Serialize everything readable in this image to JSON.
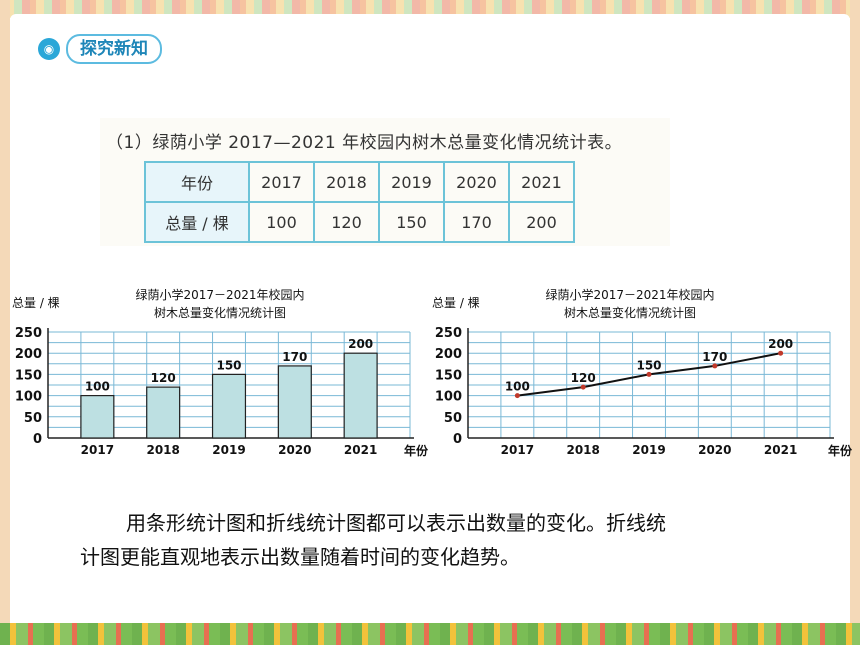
{
  "header": {
    "tag_label": "探究新知",
    "tag_icon": "tooth-icon"
  },
  "textbook": {
    "title": "（1）绿荫小学 2017—2021 年校园内树木总量变化情况统计表。",
    "table": {
      "row_headers": [
        "年份",
        "总量 / 棵"
      ],
      "years": [
        "2017",
        "2018",
        "2019",
        "2020",
        "2021"
      ],
      "totals": [
        "100",
        "120",
        "150",
        "170",
        "200"
      ]
    }
  },
  "bar_chart": {
    "title_line1": "绿荫小学2017－2021年校园内",
    "title_line2": "树木总量变化情况统计图",
    "y_unit": "总量 / 棵",
    "x_unit": "年份"
  },
  "line_chart": {
    "title_line1": "绿荫小学2017－2021年校园内",
    "title_line2": "树木总量变化情况统计图",
    "y_unit": "总量 / 棵",
    "x_unit": "年份"
  },
  "conclusion": {
    "line1": "用条形统计图和折线统计图都可以表示出数量的变化。折线统",
    "line2": "计图更能直观地表示出数量随着时间的变化趋势。"
  },
  "chart_data": [
    {
      "type": "bar",
      "categories": [
        "2017",
        "2018",
        "2019",
        "2020",
        "2021"
      ],
      "values": [
        100,
        120,
        150,
        170,
        200
      ],
      "data_labels": [
        "100",
        "120",
        "150",
        "170",
        "200"
      ],
      "title": "绿荫小学2017－2021年校园内树木总量变化情况统计图",
      "xlabel": "年份",
      "ylabel": "总量 / 棵",
      "yticks": [
        0,
        50,
        100,
        150,
        200,
        250
      ],
      "ylim": [
        0,
        250
      ],
      "grid": true,
      "colors": {
        "bar": "#bde0e2",
        "grid": "#7ab8d6"
      }
    },
    {
      "type": "line",
      "categories": [
        "2017",
        "2018",
        "2019",
        "2020",
        "2021"
      ],
      "values": [
        100,
        120,
        150,
        170,
        200
      ],
      "data_labels": [
        "100",
        "120",
        "150",
        "170",
        "200"
      ],
      "title": "绿荫小学2017－2021年校园内树木总量变化情况统计图",
      "xlabel": "年份",
      "ylabel": "总量 / 棵",
      "yticks": [
        0,
        50,
        100,
        150,
        200,
        250
      ],
      "ylim": [
        0,
        250
      ],
      "grid": true,
      "colors": {
        "line": "#111111",
        "point": "#c0392b",
        "grid": "#7ab8d6"
      }
    }
  ]
}
